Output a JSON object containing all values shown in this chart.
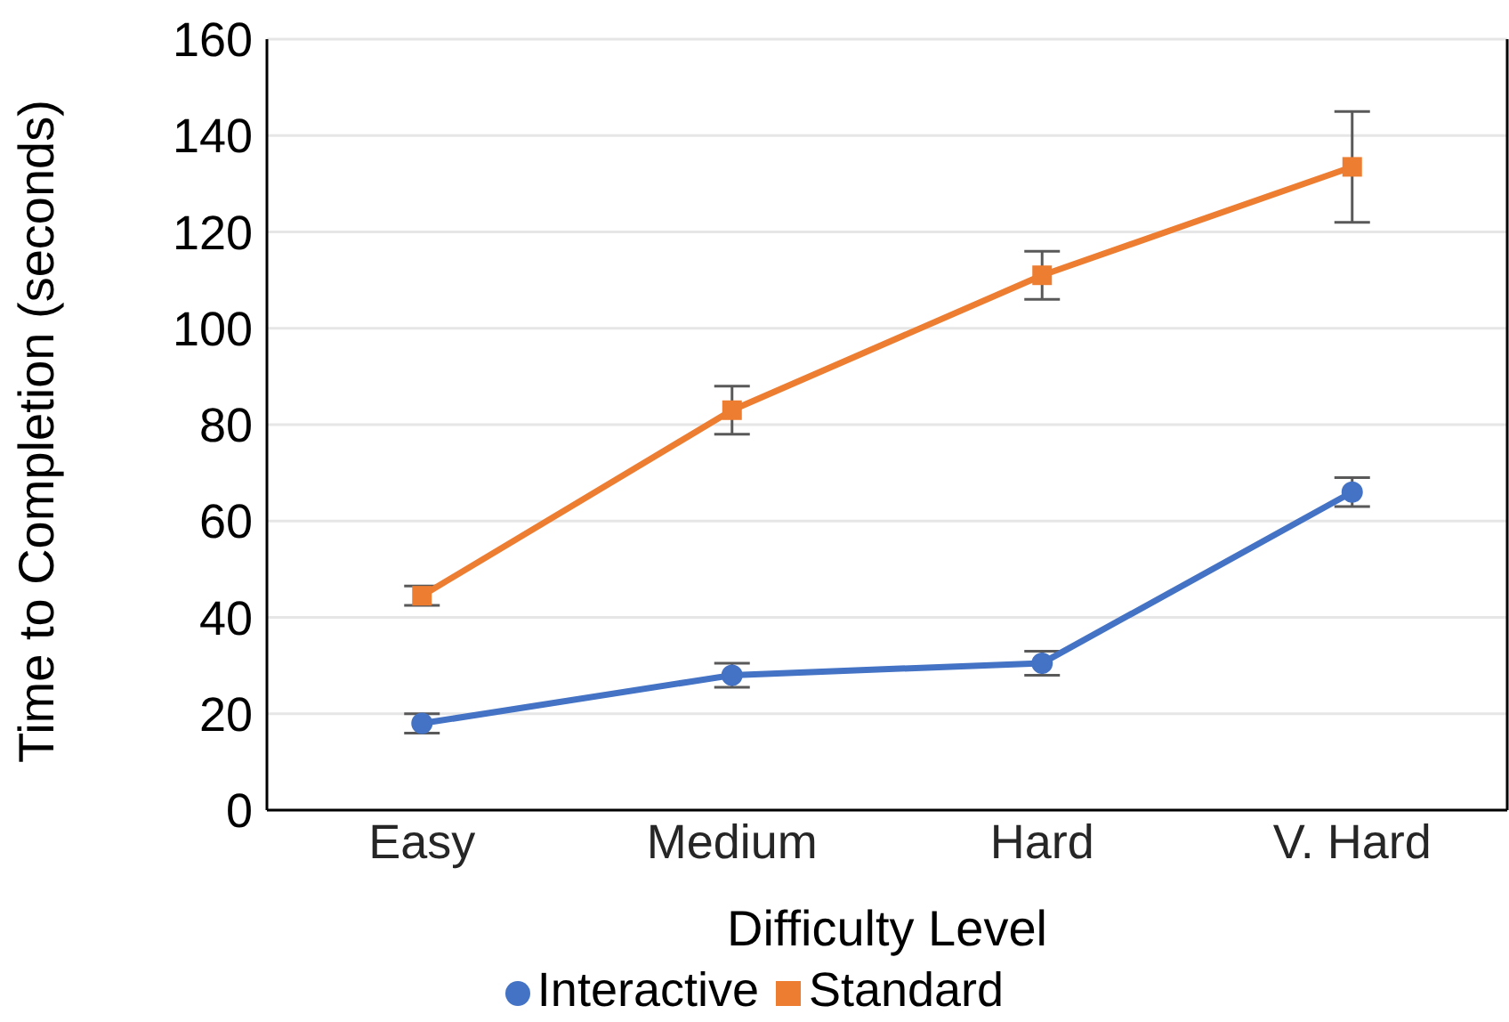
{
  "chart_data": {
    "type": "line",
    "xlabel": "Difficulty Level",
    "ylabel": "Time to Completion (seconds)",
    "categories": [
      "Easy",
      "Medium",
      "Hard",
      "V. Hard"
    ],
    "series": [
      {
        "name": "Interactive",
        "color": "#4472c4",
        "marker": "circle",
        "values": [
          18,
          28,
          30.5,
          66
        ],
        "errors": [
          2,
          2.5,
          2.5,
          3
        ]
      },
      {
        "name": "Standard",
        "color": "#ed7d31",
        "marker": "square",
        "values": [
          44.5,
          83,
          111,
          133.5
        ],
        "errors": [
          2,
          5,
          5,
          11.5
        ]
      }
    ],
    "ylim": [
      0,
      160
    ],
    "yticks": [
      0,
      20,
      40,
      60,
      80,
      100,
      120,
      140,
      160
    ],
    "grid": "y",
    "legend": "bottom"
  }
}
